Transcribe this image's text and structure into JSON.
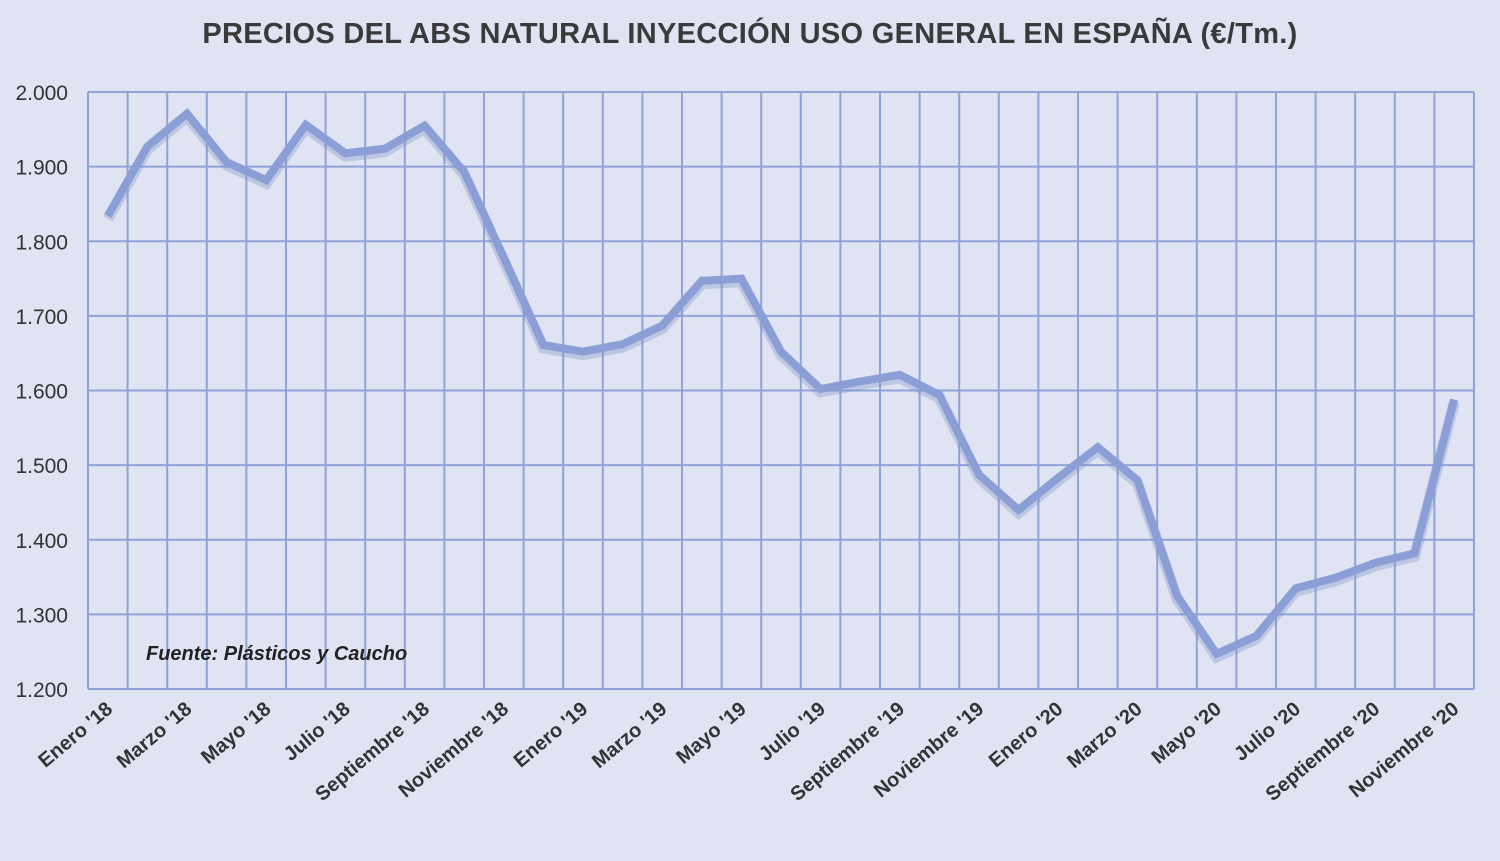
{
  "chart_data": {
    "type": "line",
    "title": "PRECIOS DEL ABS NATURAL INYECCIÓN  USO GENERAL EN ESPAÑA  (€/Tm.)",
    "xlabel": "",
    "ylabel": "",
    "ylim": [
      1200,
      2000
    ],
    "yticks": [
      1200,
      1300,
      1400,
      1500,
      1600,
      1700,
      1800,
      1900,
      2000
    ],
    "ytick_labels": [
      "1.200",
      "1.300",
      "1.400",
      "1.500",
      "1.600",
      "1.700",
      "1.800",
      "1.900",
      "2.000"
    ],
    "xtick_labels": [
      "Enero '18",
      "Marzo '18",
      "Mayo '18",
      "Julio '18",
      "Septiembre '18",
      "Noviembre '18",
      "Enero '19",
      "Marzo '19",
      "Mayo '19",
      "Julio '19",
      "Septiembre '19",
      "Noviembre '19",
      "Enero '20",
      "Marzo '20",
      "Mayo '20",
      "Julio '20",
      "Septiembre '20",
      "Noviembre '20"
    ],
    "grid": true,
    "annotation": "Fuente: Plásticos y Caucho",
    "series": [
      {
        "name": "ABS natural inyección",
        "color": "#8b9fd6",
        "values": [
          1834,
          1927,
          1971,
          1906,
          1882,
          1956,
          1918,
          1924,
          1955,
          1893,
          1778,
          1661,
          1652,
          1662,
          1687,
          1747,
          1750,
          1652,
          1602,
          1612,
          1621,
          1594,
          1487,
          1440,
          1483,
          1524,
          1480,
          1325,
          1247,
          1271,
          1335,
          1349,
          1369,
          1382,
          1588
        ]
      }
    ]
  }
}
